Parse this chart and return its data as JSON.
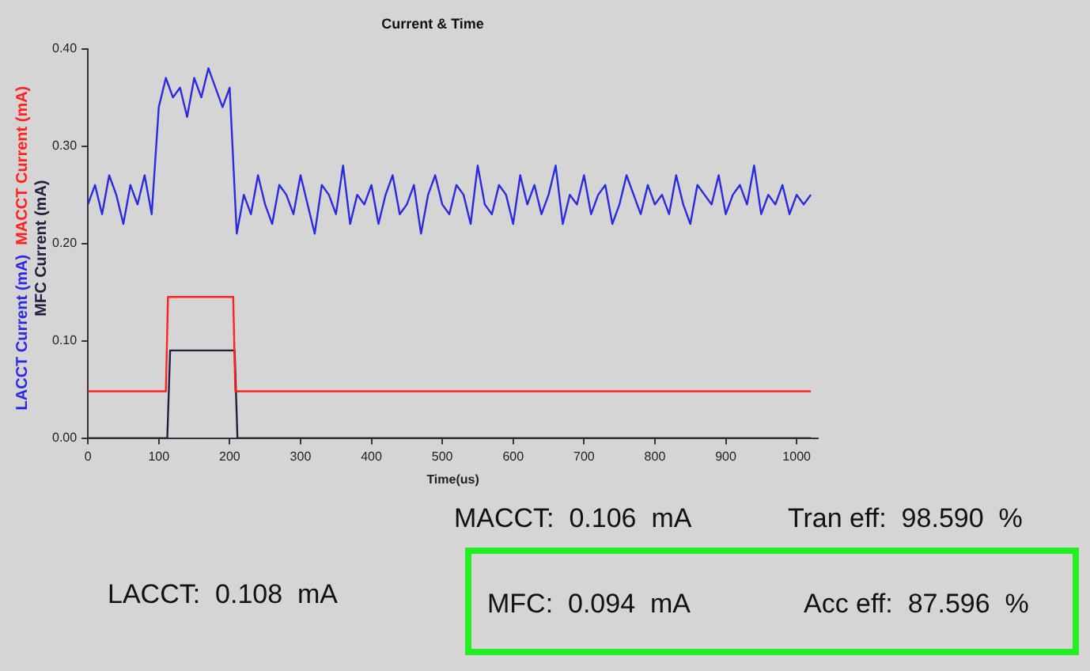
{
  "chart_data": {
    "type": "line",
    "title": "Current & Time",
    "xlabel": "Time(us)",
    "xlim": [
      0,
      1030
    ],
    "xticks": [
      0,
      100,
      200,
      300,
      400,
      500,
      600,
      700,
      800,
      900,
      1000
    ],
    "ylim": [
      0,
      0.4
    ],
    "yticks": [
      {
        "value": 0,
        "label": "0.00"
      },
      {
        "value": 0.1,
        "label": "0.10"
      },
      {
        "value": 0.2,
        "label": "0.20"
      },
      {
        "value": 0.3,
        "label": "0.30"
      },
      {
        "value": 0.4,
        "label": "0.40"
      }
    ],
    "grid": false,
    "legend": false,
    "marker": "none",
    "line_style": "solid",
    "series": [
      {
        "name": "LACCT Current (mA)",
        "color": "#2a2ae0",
        "x": [
          0,
          10,
          20,
          30,
          40,
          50,
          60,
          70,
          80,
          90,
          100,
          110,
          120,
          130,
          140,
          150,
          160,
          170,
          180,
          190,
          200,
          210,
          220,
          230,
          240,
          250,
          260,
          270,
          280,
          290,
          300,
          310,
          320,
          330,
          340,
          350,
          360,
          370,
          380,
          390,
          400,
          410,
          420,
          430,
          440,
          450,
          460,
          470,
          480,
          490,
          500,
          510,
          520,
          530,
          540,
          550,
          560,
          570,
          580,
          590,
          600,
          610,
          620,
          630,
          640,
          650,
          660,
          670,
          680,
          690,
          700,
          710,
          720,
          730,
          740,
          750,
          760,
          770,
          780,
          790,
          800,
          810,
          820,
          830,
          840,
          850,
          860,
          870,
          880,
          890,
          900,
          910,
          920,
          930,
          940,
          950,
          960,
          970,
          980,
          990,
          1000,
          1010,
          1020
        ],
        "values": [
          0.24,
          0.26,
          0.23,
          0.27,
          0.25,
          0.22,
          0.26,
          0.24,
          0.27,
          0.23,
          0.34,
          0.37,
          0.35,
          0.36,
          0.33,
          0.37,
          0.35,
          0.38,
          0.36,
          0.34,
          0.36,
          0.21,
          0.25,
          0.23,
          0.27,
          0.24,
          0.22,
          0.26,
          0.25,
          0.23,
          0.27,
          0.24,
          0.21,
          0.26,
          0.25,
          0.23,
          0.28,
          0.22,
          0.25,
          0.24,
          0.26,
          0.22,
          0.25,
          0.27,
          0.23,
          0.24,
          0.26,
          0.21,
          0.25,
          0.27,
          0.24,
          0.23,
          0.26,
          0.25,
          0.22,
          0.28,
          0.24,
          0.23,
          0.26,
          0.25,
          0.22,
          0.27,
          0.24,
          0.26,
          0.23,
          0.25,
          0.28,
          0.22,
          0.25,
          0.24,
          0.27,
          0.23,
          0.25,
          0.26,
          0.22,
          0.24,
          0.27,
          0.25,
          0.23,
          0.26,
          0.24,
          0.25,
          0.23,
          0.27,
          0.24,
          0.22,
          0.26,
          0.25,
          0.24,
          0.27,
          0.23,
          0.25,
          0.26,
          0.24,
          0.28,
          0.23,
          0.25,
          0.24,
          0.26,
          0.23,
          0.25,
          0.24,
          0.25
        ]
      },
      {
        "name": "MACCT Current (mA)",
        "color": "#ff2020",
        "x": [
          0,
          110,
          113,
          205,
          208,
          1020
        ],
        "values": [
          0.048,
          0.048,
          0.145,
          0.145,
          0.048,
          0.048
        ]
      },
      {
        "name": "MFC Current (mA)",
        "color": "#202040",
        "x": [
          0,
          112,
          116,
          207,
          211,
          1020
        ],
        "values": [
          0,
          0,
          0.09,
          0.09,
          0,
          0
        ]
      }
    ],
    "annotations": [
      "MACCT:  0.106  mA",
      "Tran eff:  98.590  %",
      "LACCT:  0.108  mA",
      "MFC:  0.094  mA",
      "Acc eff:  87.596  %"
    ]
  }
}
